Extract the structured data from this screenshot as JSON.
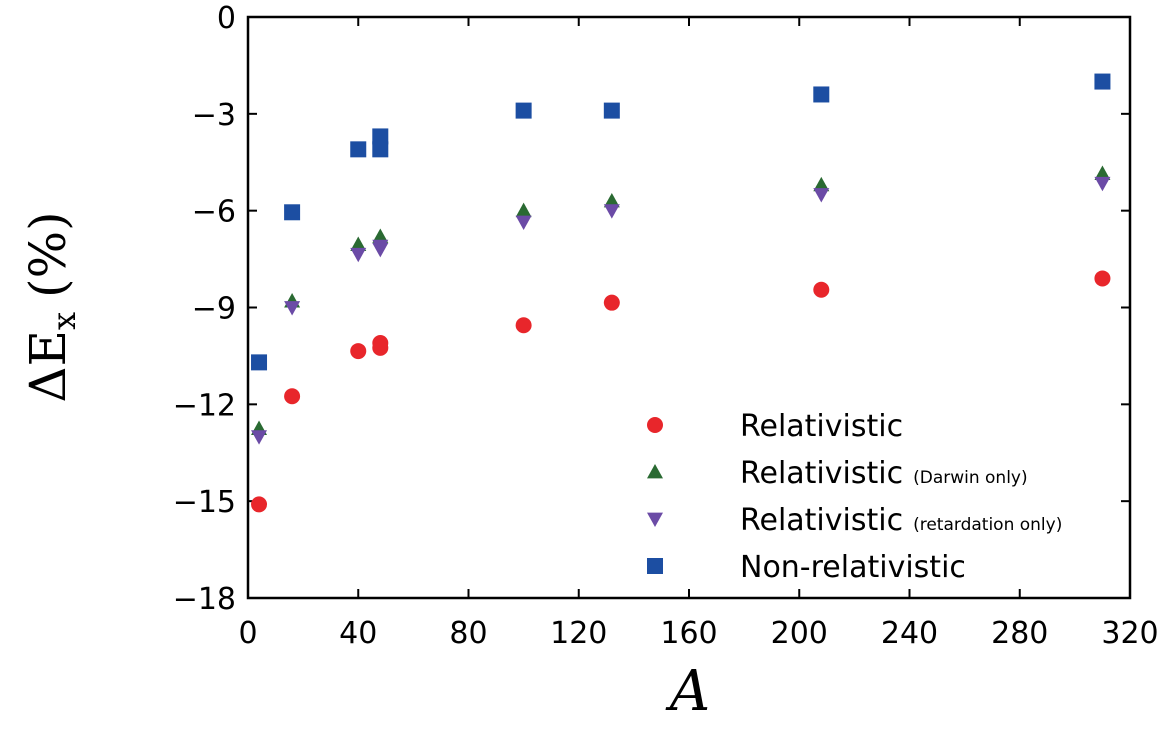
{
  "chart_data": {
    "type": "scatter",
    "title": "",
    "xlabel": "A",
    "ylabel": "ΔE",
    "ylabel_subscript": "x",
    "ylabel_unit": "(%)",
    "xlim": [
      0,
      320
    ],
    "ylim": [
      -18,
      0
    ],
    "xticks": [
      0,
      40,
      80,
      120,
      160,
      200,
      240,
      280,
      320
    ],
    "yticks": [
      0,
      -3,
      -6,
      -9,
      -12,
      -15,
      -18
    ],
    "ytick_labels": [
      "0",
      "−3",
      "−6",
      "−9",
      "−12",
      "−15",
      "−18"
    ],
    "grid": false,
    "legend_position": "bottom-right",
    "series": [
      {
        "name": "Relativistic",
        "note": "",
        "marker": "circle",
        "color": "#e8262b",
        "points": [
          [
            4,
            -15.1
          ],
          [
            16,
            -11.75
          ],
          [
            40,
            -10.35
          ],
          [
            48,
            -10.1
          ],
          [
            48,
            -10.25
          ],
          [
            100,
            -9.55
          ],
          [
            132,
            -8.85
          ],
          [
            208,
            -8.45
          ],
          [
            310,
            -8.1
          ]
        ]
      },
      {
        "name": "Relativistic",
        "note": "(Darwin only)",
        "marker": "triangle-up",
        "color": "#2a6a32",
        "points": [
          [
            4,
            -12.75
          ],
          [
            16,
            -8.8
          ],
          [
            40,
            -7.05
          ],
          [
            48,
            -6.8
          ],
          [
            100,
            -6.0
          ],
          [
            132,
            -5.7
          ],
          [
            208,
            -5.2
          ],
          [
            310,
            -4.85
          ]
        ]
      },
      {
        "name": "Relativistic",
        "note": "(retardation only)",
        "marker": "triangle-down",
        "color": "#6b4ba6",
        "points": [
          [
            4,
            -13.0
          ],
          [
            16,
            -9.0
          ],
          [
            40,
            -7.35
          ],
          [
            48,
            -7.1
          ],
          [
            48,
            -7.2
          ],
          [
            100,
            -6.35
          ],
          [
            132,
            -6.0
          ],
          [
            208,
            -5.5
          ],
          [
            310,
            -5.15
          ]
        ]
      },
      {
        "name": "Non-relativistic",
        "note": "",
        "marker": "square",
        "color": "#1c4ea2",
        "points": [
          [
            4,
            -10.7
          ],
          [
            16,
            -6.05
          ],
          [
            40,
            -4.1
          ],
          [
            48,
            -3.7
          ],
          [
            48,
            -4.1
          ],
          [
            100,
            -2.9
          ],
          [
            132,
            -2.9
          ],
          [
            208,
            -2.4
          ],
          [
            310,
            -2.0
          ]
        ]
      }
    ]
  }
}
